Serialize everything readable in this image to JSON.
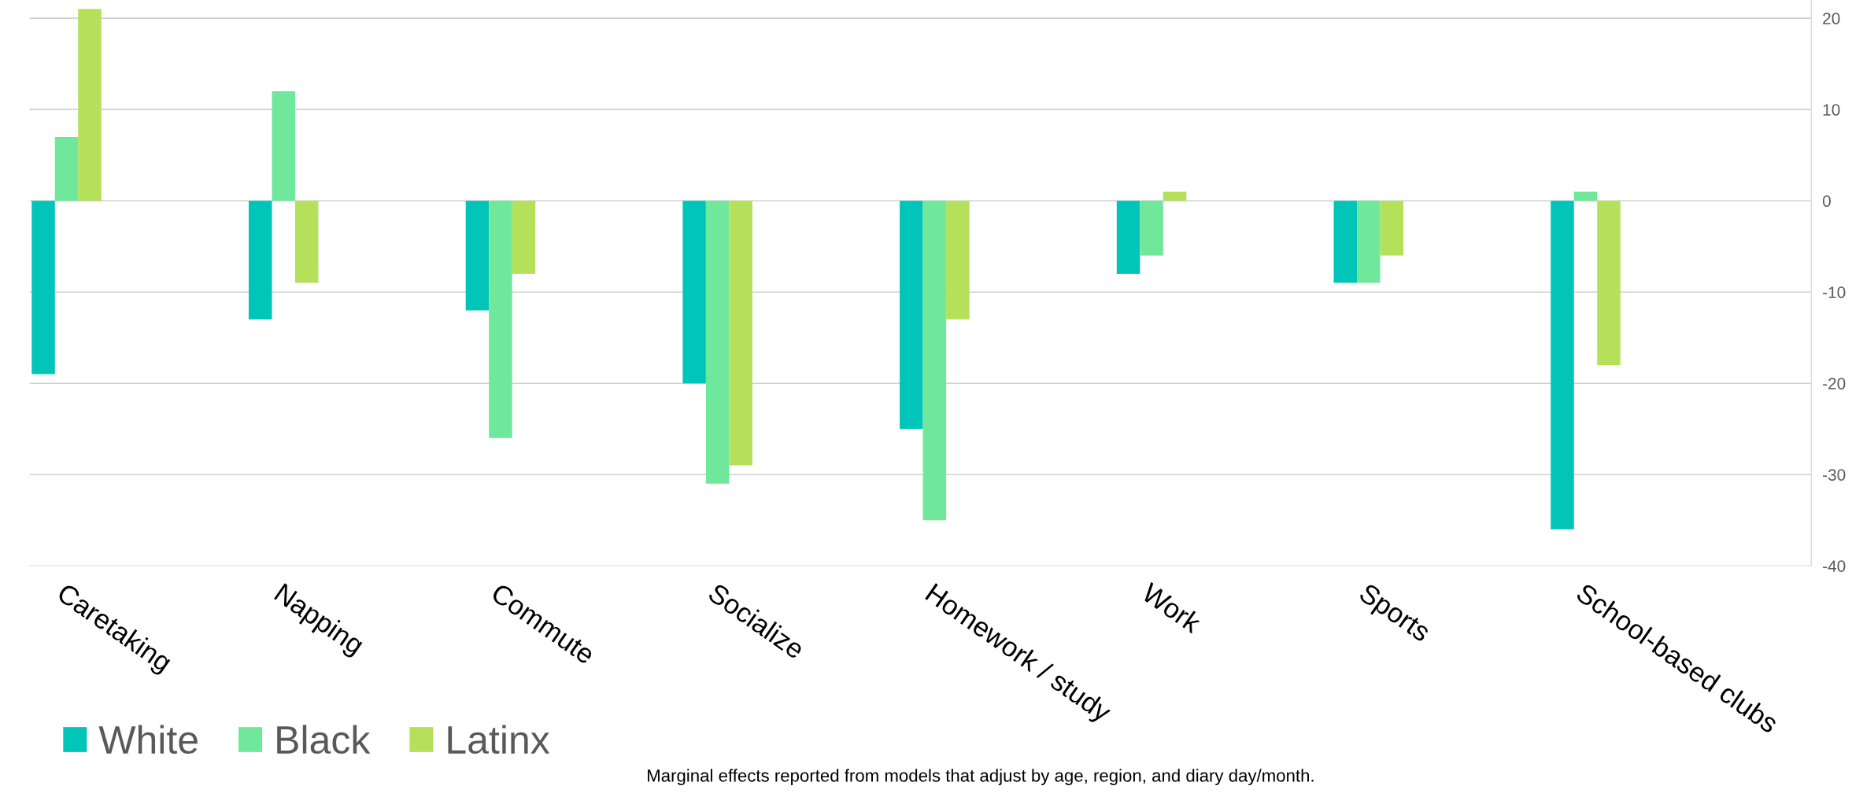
{
  "chart_data": {
    "type": "bar",
    "categories": [
      "Caretaking",
      "Napping",
      "Commute",
      "Socialize",
      "Homework / study",
      "Work",
      "Sports",
      "School-based clubs"
    ],
    "series": [
      {
        "name": "White",
        "color": "#00c5b8",
        "values": [
          -19,
          -13,
          -12,
          -20,
          -25,
          -8,
          -9,
          -36
        ]
      },
      {
        "name": "Black",
        "color": "#6fe89b",
        "values": [
          7,
          12,
          -26,
          -31,
          -35,
          -6,
          -9,
          1
        ]
      },
      {
        "name": "Latinx",
        "color": "#b4e05a",
        "values": [
          21,
          -9,
          -8,
          -29,
          -13,
          1,
          -6,
          -18
        ]
      }
    ],
    "ylim": [
      -40,
      22
    ],
    "yticks": [
      -40,
      -30,
      -20,
      -10,
      0,
      10,
      20
    ],
    "grid": "y",
    "legend": "bottom left",
    "annotations": [
      "Marginal effects reported from models that adjust by age, region, and diary day/month."
    ]
  }
}
